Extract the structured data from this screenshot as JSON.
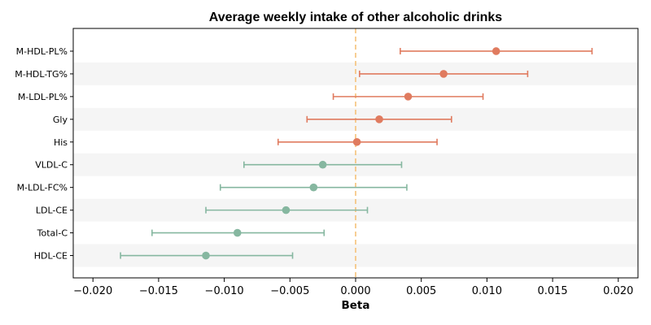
{
  "chart_data": {
    "type": "forest",
    "title": "Average weekly intake of other alcoholic drinks",
    "xlabel": "Beta",
    "ylabel": "",
    "xlim": [
      -0.0215,
      0.0215
    ],
    "x_ticks": [
      -0.02,
      -0.015,
      -0.01,
      -0.005,
      0.0,
      0.005,
      0.01,
      0.015,
      0.02
    ],
    "x_tick_labels": [
      "−0.020",
      "−0.015",
      "−0.010",
      "−0.005",
      "0.000",
      "0.005",
      "0.010",
      "0.015",
      "0.020"
    ],
    "reference_line": 0.0,
    "grid": false,
    "colors": {
      "positive": "#e07b5f",
      "negative": "#86b7a0",
      "reference": "#f5c27a",
      "band": "#f5f5f5"
    },
    "series": [
      {
        "label": "M-HDL-PL%",
        "beta": 0.0107,
        "ci_low": 0.0034,
        "ci_high": 0.018,
        "color": "#e07b5f"
      },
      {
        "label": "M-HDL-TG%",
        "beta": 0.0067,
        "ci_low": 0.0003,
        "ci_high": 0.0131,
        "color": "#e07b5f"
      },
      {
        "label": "M-LDL-PL%",
        "beta": 0.004,
        "ci_low": -0.0017,
        "ci_high": 0.0097,
        "color": "#e07b5f"
      },
      {
        "label": "Gly",
        "beta": 0.0018,
        "ci_low": -0.0037,
        "ci_high": 0.0073,
        "color": "#e07b5f"
      },
      {
        "label": "His",
        "beta": 0.0001,
        "ci_low": -0.0059,
        "ci_high": 0.0062,
        "color": "#e07b5f"
      },
      {
        "label": "VLDL-C",
        "beta": -0.0025,
        "ci_low": -0.0085,
        "ci_high": 0.0035,
        "color": "#86b7a0"
      },
      {
        "label": "M-LDL-FC%",
        "beta": -0.0032,
        "ci_low": -0.0103,
        "ci_high": 0.0039,
        "color": "#86b7a0"
      },
      {
        "label": "LDL-CE",
        "beta": -0.0053,
        "ci_low": -0.0114,
        "ci_high": 0.0009,
        "color": "#86b7a0"
      },
      {
        "label": "Total-C",
        "beta": -0.009,
        "ci_low": -0.0155,
        "ci_high": -0.0024,
        "color": "#86b7a0"
      },
      {
        "label": "HDL-CE",
        "beta": -0.0114,
        "ci_low": -0.0179,
        "ci_high": -0.0048,
        "color": "#86b7a0"
      }
    ]
  }
}
